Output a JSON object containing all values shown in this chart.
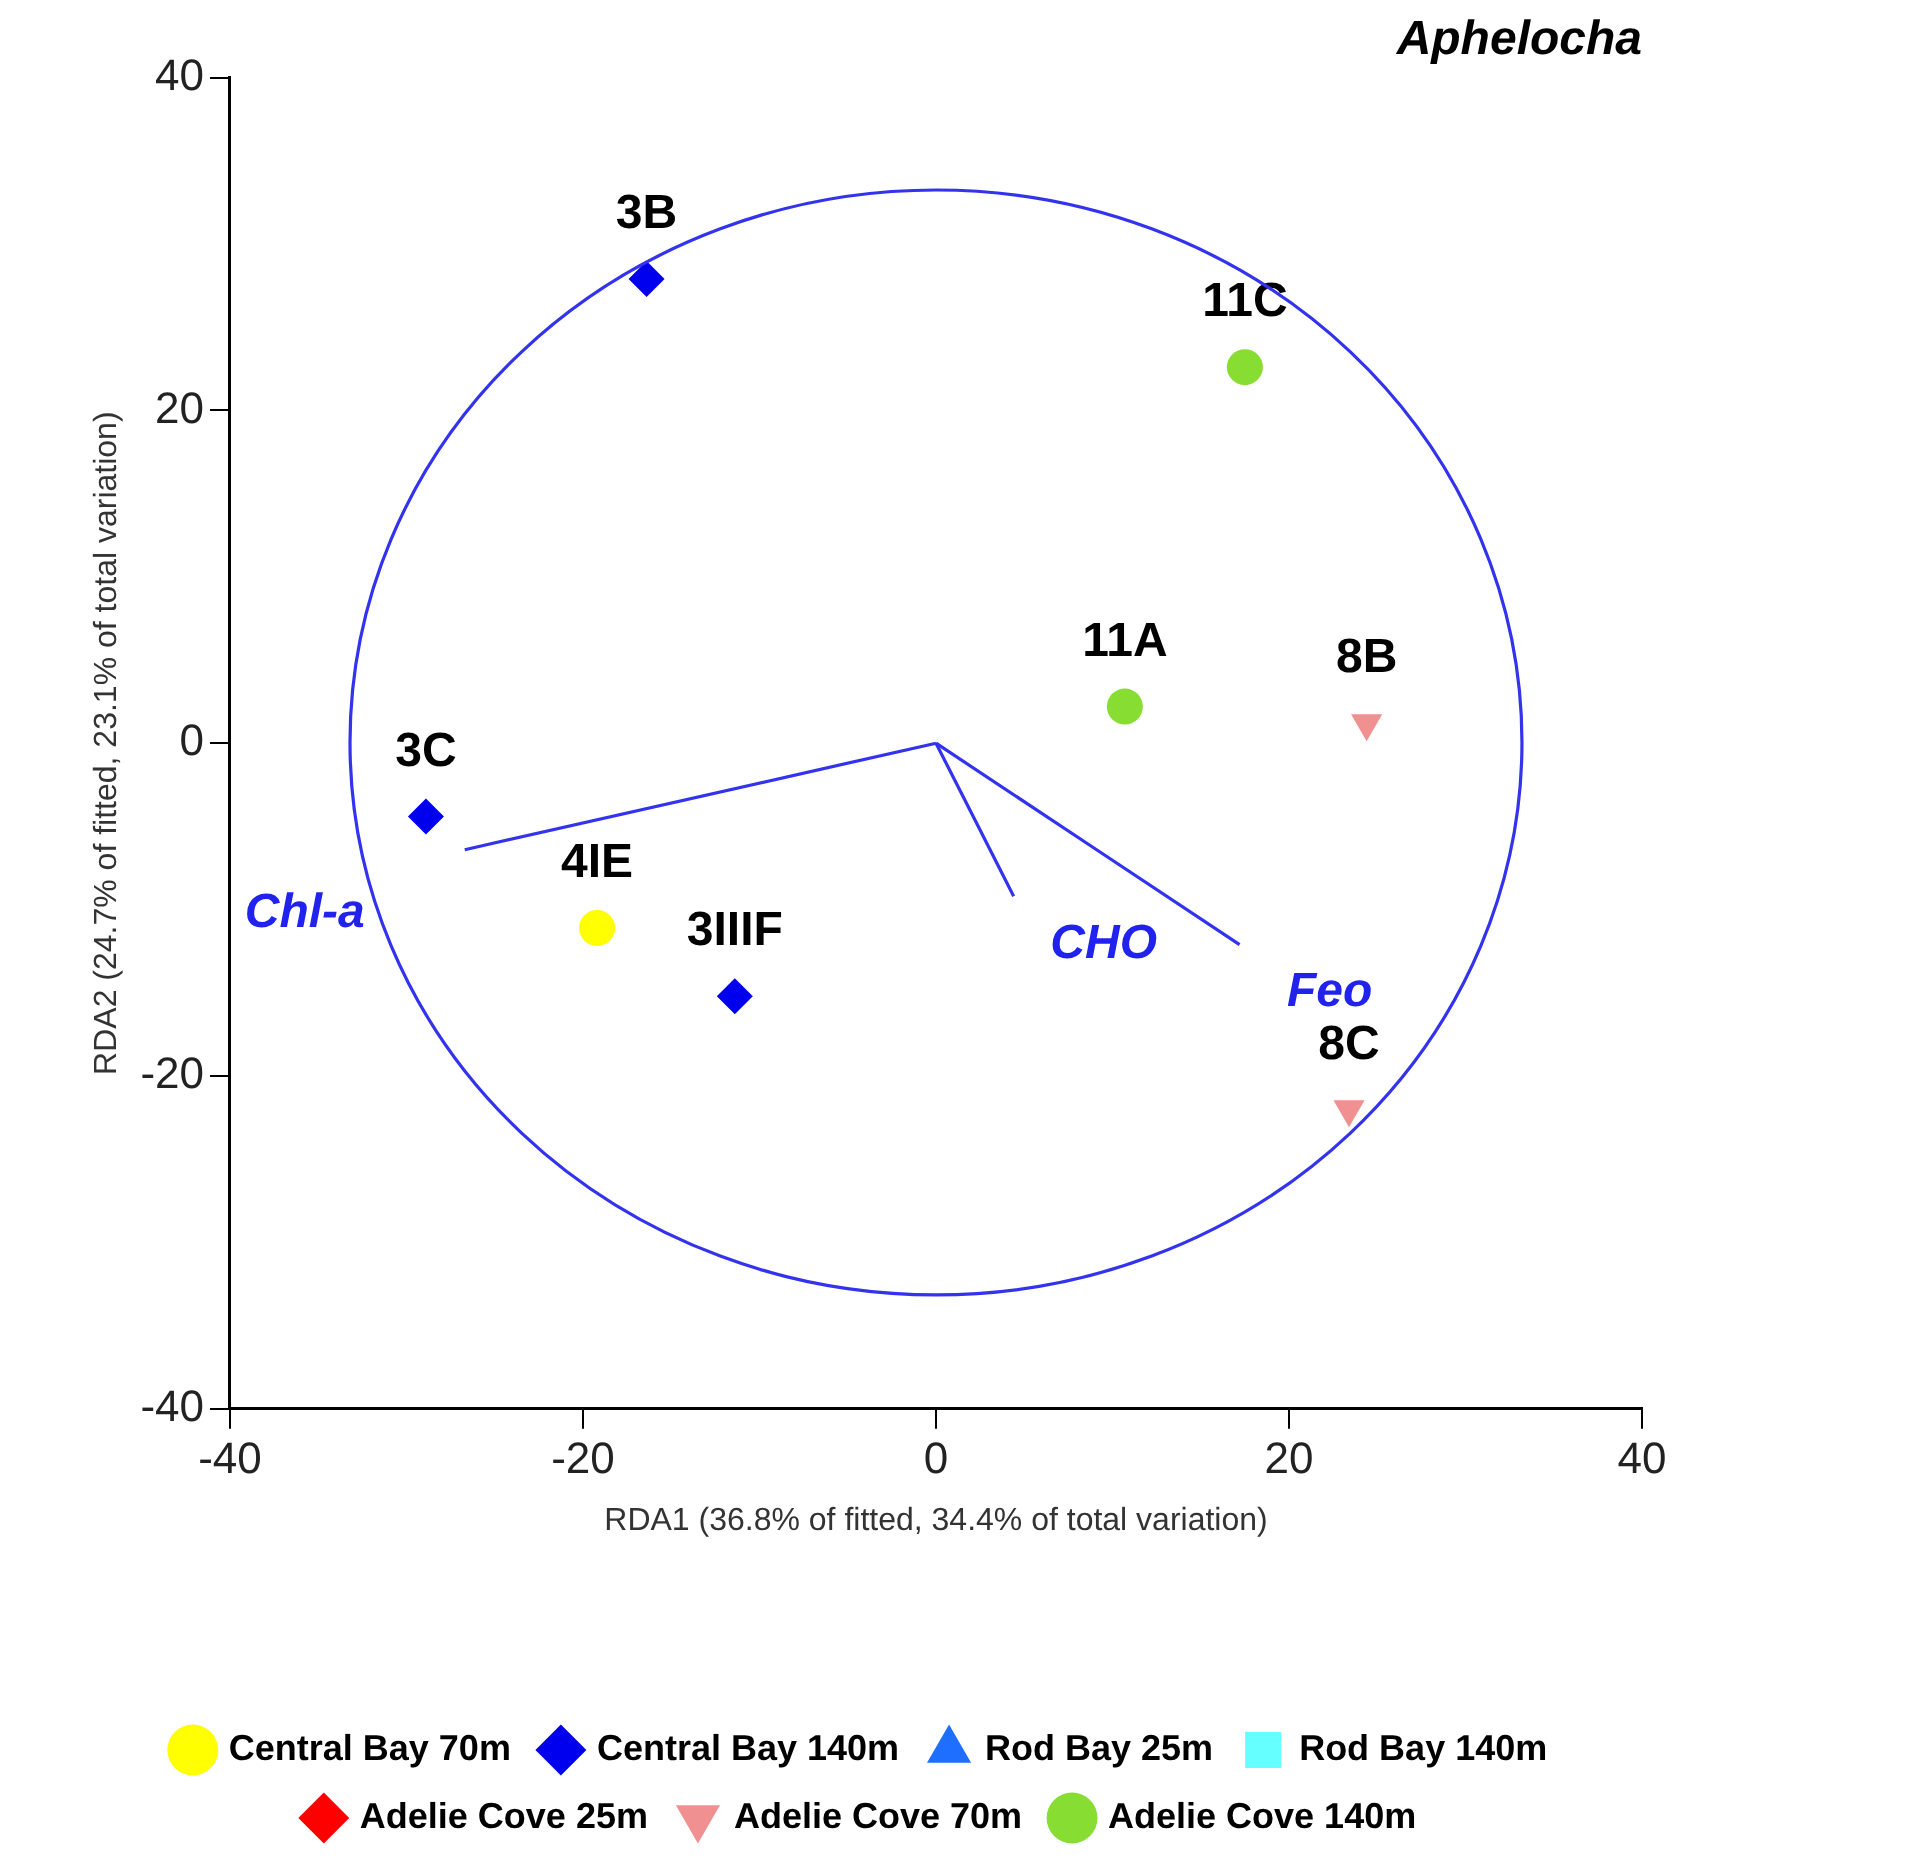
{
  "chart_data": {
    "type": "scatter",
    "title": "Aphelocha",
    "xlabel": "RDA1 (36.8% of fitted, 34.4% of total variation)",
    "ylabel": "RDA2 (24.7% of fitted, 23.1% of total variation)",
    "xlim": [
      -40,
      40
    ],
    "xticks": [
      -40,
      -20,
      0,
      20,
      40
    ],
    "ylim": [
      -40,
      40
    ],
    "yticks": [
      -40,
      -20,
      0,
      20,
      40
    ],
    "grid": false,
    "legend": "bottom",
    "series": [
      {
        "name": "Central Bay 70m",
        "color": "#ffff00",
        "marker": "circle",
        "x": [
          -19.2
        ],
        "values": [
          -11.1
        ]
      },
      {
        "name": "Central Bay 140m",
        "color": "#0000ee",
        "marker": "diamond",
        "x": [
          -16.4,
          -28.9,
          -11.4
        ],
        "values": [
          27.9,
          -4.4,
          -15.2
        ]
      },
      {
        "name": "Rod Bay 25m",
        "color": "#1e6eff",
        "marker": "triangle"
      },
      {
        "name": "Rod Bay 140m",
        "color": "#66ffff",
        "marker": "square"
      },
      {
        "name": "Adelie Cove 25m",
        "color": "#ff0000",
        "marker": "diamond"
      },
      {
        "name": "Adelie Cove 70m",
        "color": "#f09090",
        "marker": "triangle-down",
        "x": [
          24.4,
          23.4
        ],
        "values": [
          1.2,
          -22.0
        ]
      },
      {
        "name": "Adelie Cove 140m",
        "color": "#88dd33",
        "marker": "circle",
        "x": [
          17.5,
          10.7
        ],
        "values": [
          22.6,
          2.2
        ]
      },
      {
        "type": "line",
        "color": "#3333ee",
        "line_style": "solid",
        "x": [
          0,
          -26.7
        ],
        "values": [
          0,
          -6.4
        ]
      },
      {
        "type": "line",
        "color": "#3333ee",
        "line_style": "solid",
        "x": [
          0,
          4.4
        ],
        "values": [
          0,
          -9.2
        ]
      },
      {
        "type": "line",
        "color": "#3333ee",
        "line_style": "solid",
        "x": [
          0,
          17.2
        ],
        "values": [
          0,
          -12.1
        ]
      }
    ],
    "annotations": [
      {
        "text": "3B",
        "x": -16.4,
        "y": 27.9
      },
      {
        "text": "11C",
        "x": 17.5,
        "y": 22.6
      },
      {
        "text": "11A",
        "x": 10.7,
        "y": 2.2
      },
      {
        "text": "8B",
        "x": 24.4,
        "y": 1.2
      },
      {
        "text": "3C",
        "x": -28.9,
        "y": -4.4
      },
      {
        "text": "4IE",
        "x": -19.2,
        "y": -11.1
      },
      {
        "text": "3IIIF",
        "x": -11.4,
        "y": -15.2
      },
      {
        "text": "8C",
        "x": 23.4,
        "y": -22.0
      },
      {
        "text": "Chl-a",
        "x": -26.7,
        "y": -6.4
      },
      {
        "text": "CHO",
        "x": 4.4,
        "y": -9.2
      },
      {
        "text": "Feo",
        "x": 17.2,
        "y": -12.1
      }
    ]
  }
}
